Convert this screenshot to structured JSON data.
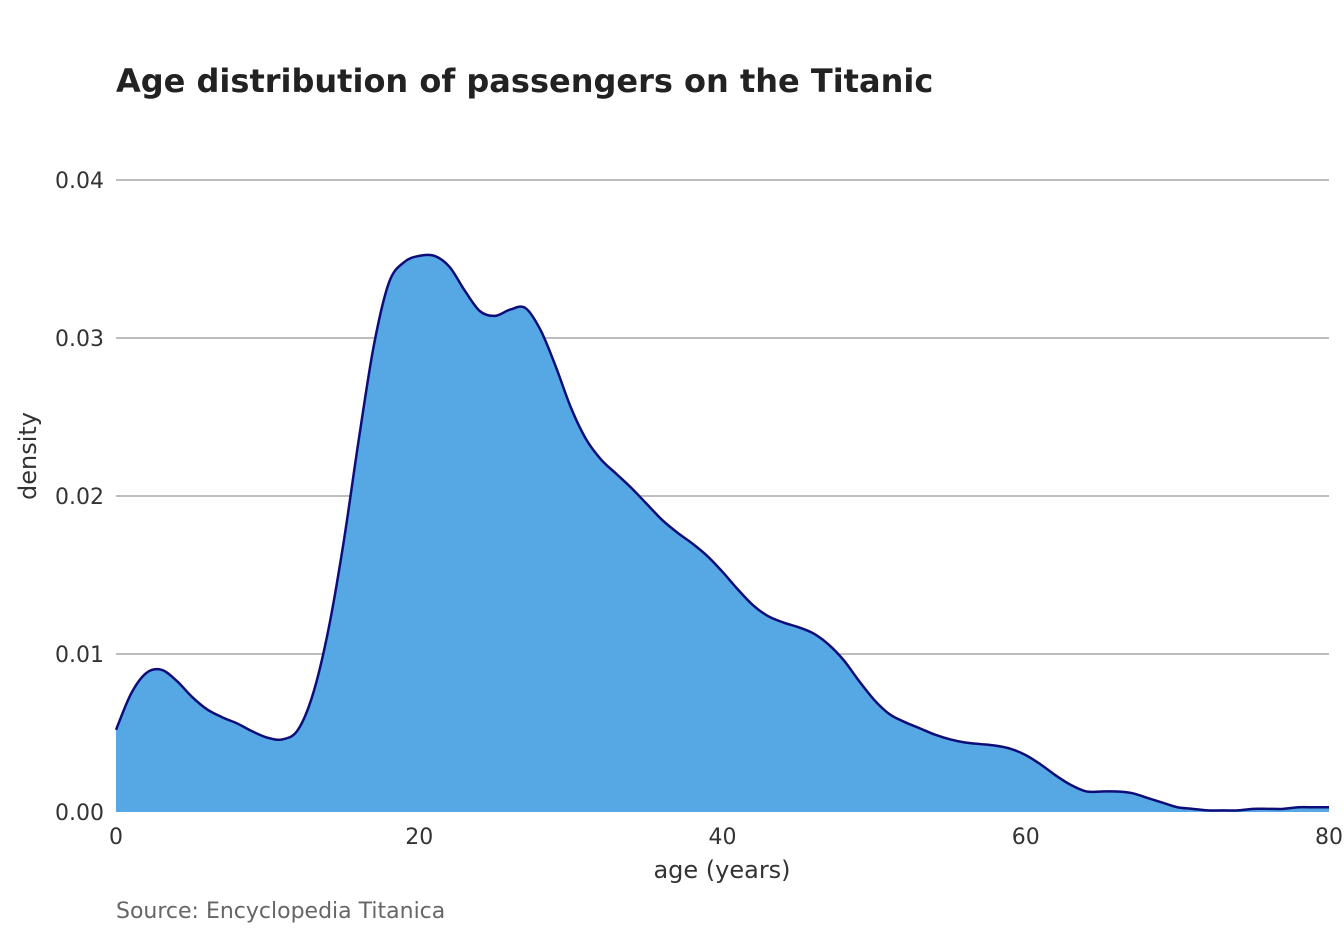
{
  "chart_data": {
    "type": "area",
    "title": "Age distribution of passengers on the Titanic",
    "xlabel": "age (years)",
    "ylabel": "density",
    "caption": "Source: Encyclopedia Titanica",
    "xlim": [
      0,
      80
    ],
    "ylim": [
      0,
      0.04
    ],
    "x_ticks": [
      "0",
      "20",
      "40",
      "60",
      "80"
    ],
    "y_ticks": [
      "0.00",
      "0.01",
      "0.02",
      "0.03",
      "0.04"
    ],
    "grid": true,
    "fill_color": "#56a8e5",
    "line_color": "#0d0d7a",
    "grid_color": "#bdbdbd",
    "x": [
      0,
      1,
      2,
      3,
      4,
      5,
      6,
      7,
      8,
      9,
      10,
      11,
      12,
      13,
      14,
      15,
      16,
      17,
      18,
      19,
      20,
      21,
      22,
      23,
      24,
      25,
      26,
      27,
      28,
      29,
      30,
      31,
      32,
      33,
      34,
      35,
      36,
      37,
      38,
      39,
      40,
      41,
      42,
      43,
      44,
      45,
      46,
      47,
      48,
      49,
      50,
      51,
      52,
      53,
      54,
      55,
      56,
      57,
      58,
      59,
      60,
      61,
      62,
      63,
      64,
      65,
      66,
      67,
      68,
      69,
      70,
      71,
      72,
      73,
      74,
      75,
      76,
      77,
      78,
      79,
      80
    ],
    "values": [
      0.0052,
      0.0075,
      0.0088,
      0.009,
      0.0083,
      0.0073,
      0.0065,
      0.006,
      0.0056,
      0.0051,
      0.0047,
      0.0046,
      0.0052,
      0.0075,
      0.0115,
      0.017,
      0.0235,
      0.0295,
      0.0335,
      0.0348,
      0.0352,
      0.0352,
      0.0345,
      0.033,
      0.0317,
      0.0314,
      0.0318,
      0.0319,
      0.0305,
      0.0282,
      0.0256,
      0.0236,
      0.0223,
      0.0214,
      0.0205,
      0.0195,
      0.0185,
      0.0177,
      0.017,
      0.0162,
      0.0152,
      0.0141,
      0.0131,
      0.0124,
      0.012,
      0.0117,
      0.0113,
      0.0106,
      0.0096,
      0.0083,
      0.0071,
      0.0062,
      0.0057,
      0.0053,
      0.0049,
      0.0046,
      0.0044,
      0.0043,
      0.0042,
      0.004,
      0.0036,
      0.003,
      0.0023,
      0.0017,
      0.0013,
      0.0013,
      0.0013,
      0.0012,
      0.0009,
      0.0006,
      0.0003,
      0.0002,
      0.0001,
      0.0001,
      0.0001,
      0.0002,
      0.0002,
      0.0002,
      0.0003,
      0.0003,
      0.0003
    ]
  }
}
